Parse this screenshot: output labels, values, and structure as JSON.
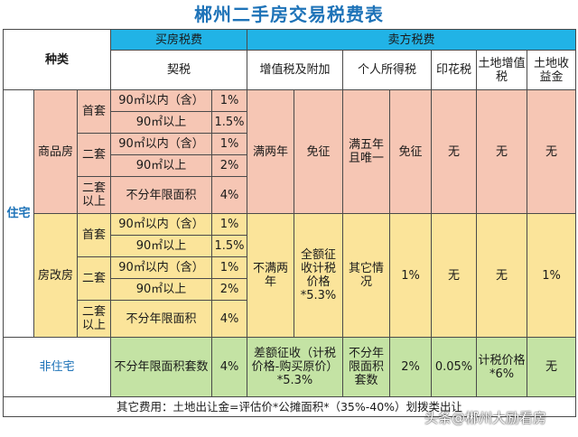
{
  "title": "郴州二手房交易税费表",
  "header": {
    "category": "种类",
    "buyer_group": "买房税费",
    "seller_group": "卖方税费",
    "deed_tax": "契税",
    "vat": "增值税及附加",
    "income_tax": "个人所得税",
    "stamp_tax": "印花税",
    "land_vat": "土地增值税",
    "land_revenue": "土地收益金"
  },
  "residential": {
    "label": "住宅",
    "commodity": {
      "label": "商品房",
      "first_home": "首套",
      "second_home": "二套",
      "above_second": "二套以上",
      "rows": [
        {
          "area": "90㎡以内（含）",
          "rate": "1%"
        },
        {
          "area": "90㎡以上",
          "rate": "1.5%"
        },
        {
          "area": "90㎡以内（含）",
          "rate": "1%"
        },
        {
          "area": "90㎡以上",
          "rate": "2%"
        },
        {
          "area": "不分年限面积",
          "rate": "4%"
        }
      ],
      "vat_condition": "满两年",
      "vat_value": "免征",
      "income_condition": "满五年且唯一",
      "income_value": "免征",
      "stamp": "无",
      "land_vat": "无",
      "land_revenue": "无"
    },
    "reform": {
      "label": "房改房",
      "first_home": "首套",
      "second_home": "二套",
      "above_second": "二套以上",
      "rows": [
        {
          "area": "90㎡以内（含）",
          "rate": "1%"
        },
        {
          "area": "90㎡以上",
          "rate": "1.5%"
        },
        {
          "area": "90㎡以内（含）",
          "rate": "1%"
        },
        {
          "area": "90㎡以上",
          "rate": "2%"
        },
        {
          "area": "不分年限面积",
          "rate": "4%"
        }
      ],
      "vat_condition": "不满两年",
      "vat_value": "全额征收计税价格*5.3%",
      "income_condition": "其它情况",
      "income_value": "1%",
      "stamp": "无",
      "land_vat": "无",
      "land_revenue": "1%"
    }
  },
  "non_residential": {
    "label": "非住宅",
    "deed_desc": "不分年限面积套数",
    "deed_rate": "4%",
    "vat": "差额征收（计税价格-购买原价）*5.3%",
    "income_condition": "不分年限面积套数",
    "income_value": "2%",
    "stamp": "0.05%",
    "land_vat": "计税价格*6%",
    "land_revenue": "无"
  },
  "footer": "其它费用：土地出让金=评估价*公摊面积*（35%-40%）划拨类出让",
  "watermark": "头条@郴州大励看房"
}
